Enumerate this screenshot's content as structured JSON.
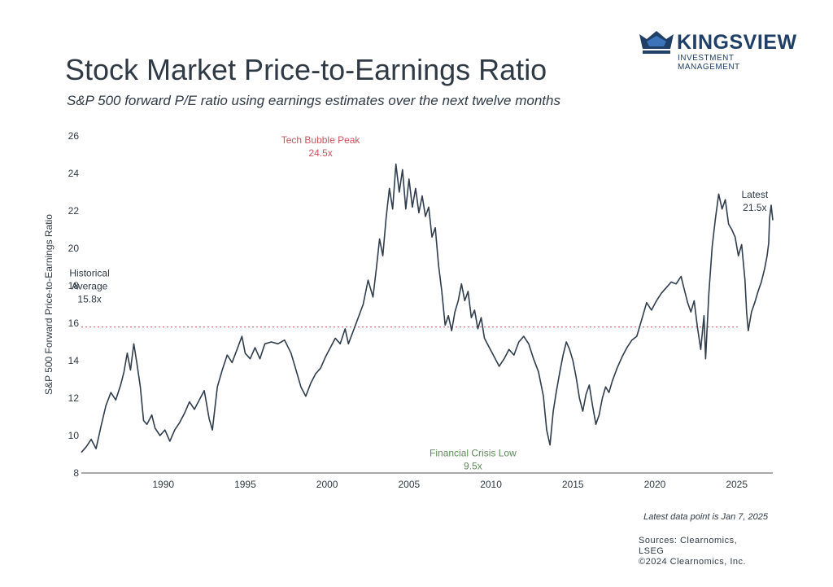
{
  "brand": {
    "name": "KINGSVIEW",
    "tagline": "INVESTMENT MANAGEMENT",
    "color": "#1f3f66"
  },
  "header": {
    "title": "Stock Market Price-to-Earnings Ratio",
    "subtitle": "S&P 500 forward P/E ratio using earnings estimates over the next twelve months"
  },
  "footer": {
    "latest_note": "Latest data point is Jan 7, 2025",
    "sources": [
      "Sources: Clearnomics,",
      "LSEG",
      "©2024 Clearnomics, Inc."
    ]
  },
  "chart_data": {
    "type": "line",
    "title": "Stock Market Price-to-Earnings Ratio",
    "subtitle": "S&P 500 forward P/E ratio using earnings estimates over the next twelve months",
    "ylabel": "S&P 500 Forward Price-to-Earnings Ratio",
    "xlabel": "",
    "xlim": [
      1985,
      2027.2
    ],
    "ylim": [
      8,
      26
    ],
    "x_ticks": [
      1990,
      1995,
      2000,
      2005,
      2010,
      2015,
      2020,
      2025
    ],
    "y_ticks": [
      8,
      10,
      12,
      14,
      16,
      18,
      20,
      22,
      24,
      26
    ],
    "grid": false,
    "line_color": "#2f3d4c",
    "average_line": {
      "value": 15.8,
      "color": "#d9747c",
      "style": "dotted"
    },
    "annotations": [
      {
        "id": "tech-bubble",
        "x": 1999.6,
        "y": 25.6,
        "lines": [
          "Tech Bubble Peak",
          "24.5x"
        ],
        "color": "#c9545d"
      },
      {
        "id": "historical-average",
        "x": 1985.5,
        "y": 18.5,
        "lines": [
          "Historical",
          "Average",
          "15.8x"
        ],
        "color": "#2f3a45"
      },
      {
        "id": "financial-crisis",
        "x": 2008.9,
        "y": 8.9,
        "lines": [
          "Financial Crisis Low",
          "9.5x"
        ],
        "color": "#5f8a5a"
      },
      {
        "id": "latest",
        "x": 2026.1,
        "y": 22.7,
        "lines": [
          "Latest",
          "21.5x"
        ],
        "color": "#2f3a45"
      }
    ],
    "series": [
      {
        "points": [
          [
            1985.0,
            9.1
          ],
          [
            1985.3,
            9.4
          ],
          [
            1985.6,
            9.8
          ],
          [
            1985.9,
            9.3
          ],
          [
            1986.2,
            10.5
          ],
          [
            1986.5,
            11.6
          ],
          [
            1986.8,
            12.3
          ],
          [
            1987.1,
            11.9
          ],
          [
            1987.4,
            12.7
          ],
          [
            1987.6,
            13.4
          ],
          [
            1987.8,
            14.4
          ],
          [
            1988.0,
            13.5
          ],
          [
            1988.2,
            14.9
          ],
          [
            1988.4,
            13.8
          ],
          [
            1988.6,
            12.6
          ],
          [
            1988.8,
            10.8
          ],
          [
            1989.0,
            10.6
          ],
          [
            1989.3,
            11.1
          ],
          [
            1989.5,
            10.4
          ],
          [
            1989.8,
            10.0
          ],
          [
            1990.1,
            10.3
          ],
          [
            1990.4,
            9.7
          ],
          [
            1990.7,
            10.3
          ],
          [
            1991.0,
            10.7
          ],
          [
            1991.3,
            11.2
          ],
          [
            1991.6,
            11.8
          ],
          [
            1991.9,
            11.4
          ],
          [
            1992.2,
            11.9
          ],
          [
            1992.5,
            12.4
          ],
          [
            1992.8,
            10.9
          ],
          [
            1993.0,
            10.3
          ],
          [
            1993.3,
            12.6
          ],
          [
            1993.6,
            13.5
          ],
          [
            1993.9,
            14.3
          ],
          [
            1994.2,
            13.9
          ],
          [
            1994.5,
            14.6
          ],
          [
            1994.8,
            15.3
          ],
          [
            1995.0,
            14.4
          ],
          [
            1995.3,
            14.1
          ],
          [
            1995.6,
            14.7
          ],
          [
            1995.9,
            14.1
          ],
          [
            1996.2,
            14.9
          ],
          [
            1996.6,
            15.0
          ],
          [
            1997.0,
            14.9
          ],
          [
            1997.4,
            15.1
          ],
          [
            1997.8,
            14.4
          ],
          [
            1998.1,
            13.5
          ],
          [
            1998.4,
            12.6
          ],
          [
            1998.7,
            12.1
          ],
          [
            1999.0,
            12.8
          ],
          [
            1999.3,
            13.3
          ],
          [
            1999.6,
            13.6
          ],
          [
            1999.9,
            14.2
          ],
          [
            2000.2,
            14.7
          ],
          [
            2000.5,
            15.2
          ],
          [
            2000.8,
            14.9
          ],
          [
            2001.1,
            15.7
          ],
          [
            2001.3,
            14.9
          ],
          [
            2001.6,
            15.6
          ],
          [
            2001.9,
            16.3
          ],
          [
            2002.2,
            17.0
          ],
          [
            2002.5,
            18.3
          ],
          [
            2002.8,
            17.4
          ],
          [
            2003.0,
            18.9
          ],
          [
            2003.2,
            20.5
          ],
          [
            2003.4,
            19.6
          ],
          [
            2003.6,
            21.6
          ],
          [
            2003.8,
            23.2
          ],
          [
            2004.0,
            22.1
          ],
          [
            2004.2,
            24.5
          ],
          [
            2004.4,
            23.0
          ],
          [
            2004.6,
            24.2
          ],
          [
            2004.8,
            22.1
          ],
          [
            2005.0,
            23.7
          ],
          [
            2005.2,
            22.2
          ],
          [
            2005.4,
            23.2
          ],
          [
            2005.6,
            21.9
          ],
          [
            2005.8,
            22.8
          ],
          [
            2006.0,
            21.7
          ],
          [
            2006.2,
            22.2
          ],
          [
            2006.4,
            20.6
          ],
          [
            2006.6,
            21.1
          ],
          [
            2006.8,
            19.1
          ],
          [
            2007.0,
            17.7
          ],
          [
            2007.2,
            15.9
          ],
          [
            2007.4,
            16.4
          ],
          [
            2007.6,
            15.6
          ],
          [
            2007.8,
            16.6
          ],
          [
            2008.0,
            17.2
          ],
          [
            2008.2,
            18.1
          ],
          [
            2008.4,
            17.2
          ],
          [
            2008.6,
            17.7
          ],
          [
            2008.8,
            16.3
          ],
          [
            2009.0,
            16.7
          ],
          [
            2009.2,
            15.7
          ],
          [
            2009.4,
            16.3
          ],
          [
            2009.6,
            15.2
          ],
          [
            2009.9,
            14.7
          ],
          [
            2010.2,
            14.2
          ],
          [
            2010.5,
            13.7
          ],
          [
            2010.8,
            14.1
          ],
          [
            2011.1,
            14.6
          ],
          [
            2011.4,
            14.3
          ],
          [
            2011.7,
            15.0
          ],
          [
            2012.0,
            15.3
          ],
          [
            2012.3,
            14.9
          ],
          [
            2012.6,
            14.1
          ],
          [
            2012.9,
            13.4
          ],
          [
            2013.2,
            12.1
          ],
          [
            2013.4,
            10.3
          ],
          [
            2013.6,
            9.5
          ],
          [
            2013.8,
            11.3
          ],
          [
            2014.0,
            12.4
          ],
          [
            2014.2,
            13.4
          ],
          [
            2014.4,
            14.3
          ],
          [
            2014.6,
            15.0
          ],
          [
            2014.8,
            14.6
          ],
          [
            2015.0,
            14.0
          ],
          [
            2015.2,
            13.1
          ],
          [
            2015.4,
            12.0
          ],
          [
            2015.6,
            11.3
          ],
          [
            2015.8,
            12.2
          ],
          [
            2016.0,
            12.7
          ],
          [
            2016.2,
            11.6
          ],
          [
            2016.4,
            10.6
          ],
          [
            2016.6,
            11.1
          ],
          [
            2016.8,
            12.0
          ],
          [
            2017.0,
            12.6
          ],
          [
            2017.2,
            12.3
          ],
          [
            2017.4,
            12.9
          ],
          [
            2017.7,
            13.6
          ],
          [
            2018.0,
            14.2
          ],
          [
            2018.3,
            14.7
          ],
          [
            2018.6,
            15.1
          ],
          [
            2018.9,
            15.3
          ],
          [
            2019.2,
            16.2
          ],
          [
            2019.5,
            17.1
          ],
          [
            2019.8,
            16.7
          ],
          [
            2020.1,
            17.2
          ],
          [
            2020.4,
            17.6
          ],
          [
            2020.7,
            17.9
          ],
          [
            2021.0,
            18.2
          ],
          [
            2021.3,
            18.1
          ],
          [
            2021.6,
            18.5
          ],
          [
            2021.8,
            17.8
          ],
          [
            2022.0,
            17.1
          ],
          [
            2022.2,
            16.6
          ],
          [
            2022.4,
            17.2
          ],
          [
            2022.6,
            15.8
          ],
          [
            2022.8,
            14.6
          ],
          [
            2023.0,
            16.4
          ],
          [
            2023.1,
            14.1
          ],
          [
            2023.3,
            17.6
          ],
          [
            2023.5,
            20.1
          ],
          [
            2023.7,
            21.6
          ],
          [
            2023.9,
            22.9
          ],
          [
            2024.1,
            22.1
          ],
          [
            2024.3,
            22.6
          ],
          [
            2024.5,
            21.3
          ],
          [
            2024.7,
            21.0
          ],
          [
            2024.9,
            20.6
          ],
          [
            2025.1,
            19.6
          ],
          [
            2025.3,
            20.2
          ],
          [
            2025.5,
            18.3
          ],
          [
            2025.6,
            16.6
          ],
          [
            2025.7,
            15.6
          ],
          [
            2025.9,
            16.6
          ],
          [
            2026.1,
            17.1
          ],
          [
            2026.3,
            17.7
          ],
          [
            2026.5,
            18.2
          ],
          [
            2026.7,
            18.9
          ],
          [
            2026.85,
            19.6
          ],
          [
            2026.95,
            20.3
          ],
          [
            2027.0,
            21.6
          ],
          [
            2027.1,
            22.3
          ],
          [
            2027.2,
            21.5
          ]
        ]
      }
    ]
  }
}
